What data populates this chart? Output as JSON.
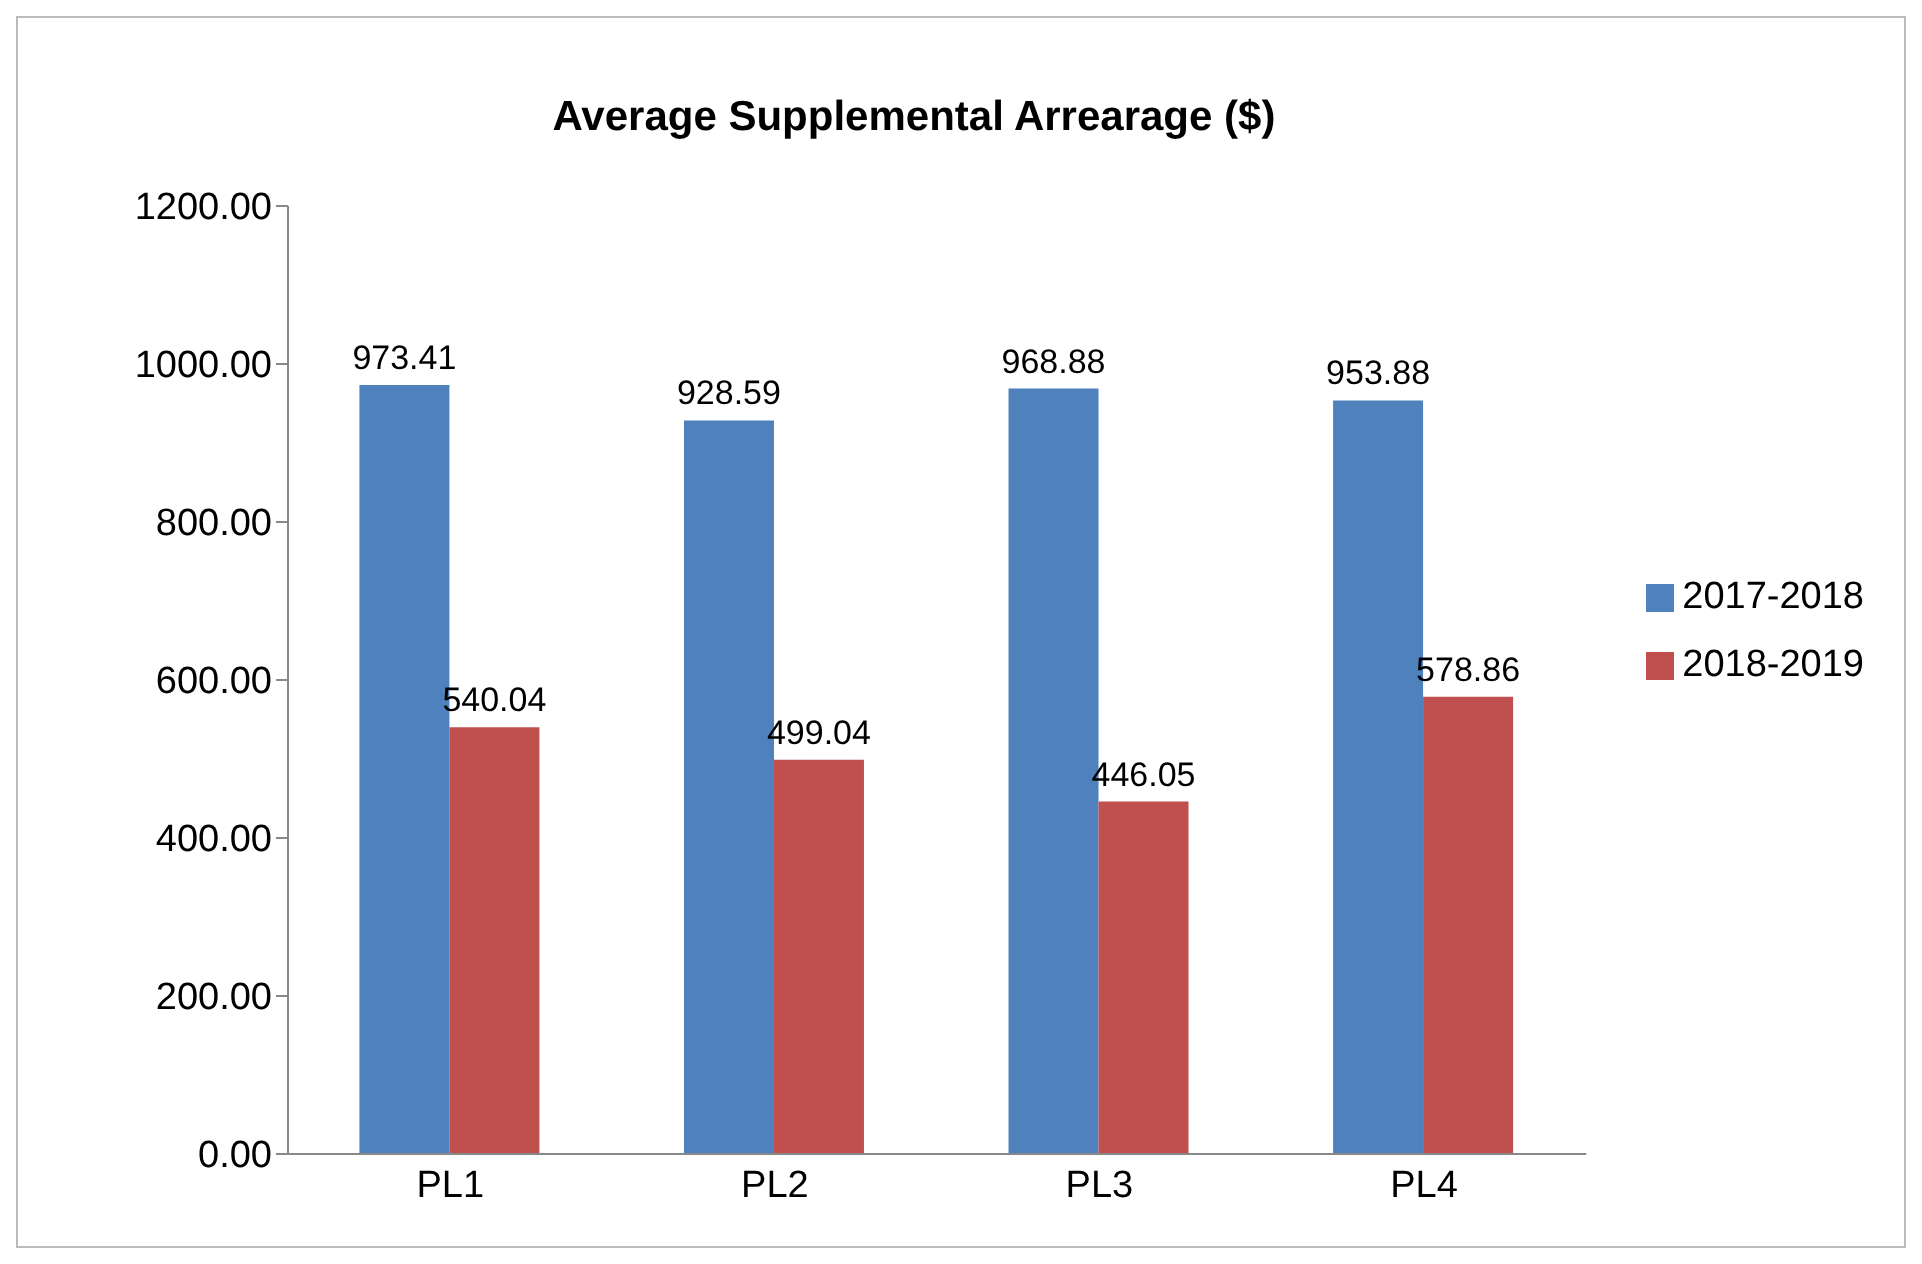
{
  "chart_data": {
    "type": "bar",
    "title": "Average Supplemental Arrearage ($)",
    "categories": [
      "PL1",
      "PL2",
      "PL3",
      "PL4"
    ],
    "series": [
      {
        "name": "2017-2018",
        "color": "#4f81bd",
        "values": [
          973.41,
          928.59,
          968.88,
          953.88
        ]
      },
      {
        "name": "2018-2019",
        "color": "#c0504d",
        "values": [
          540.04,
          499.04,
          446.05,
          578.86
        ]
      }
    ],
    "ylim": [
      0,
      1200
    ],
    "yticks": [
      {
        "value": 0,
        "label": "0.00"
      },
      {
        "value": 200,
        "label": "200.00"
      },
      {
        "value": 400,
        "label": "400.00"
      },
      {
        "value": 600,
        "label": "600.00"
      },
      {
        "value": 800,
        "label": "800.00"
      },
      {
        "value": 1000,
        "label": "1000.00"
      },
      {
        "value": 1200,
        "label": "1200.00"
      }
    ],
    "data_labels": true,
    "legend": "right",
    "grid": false
  }
}
